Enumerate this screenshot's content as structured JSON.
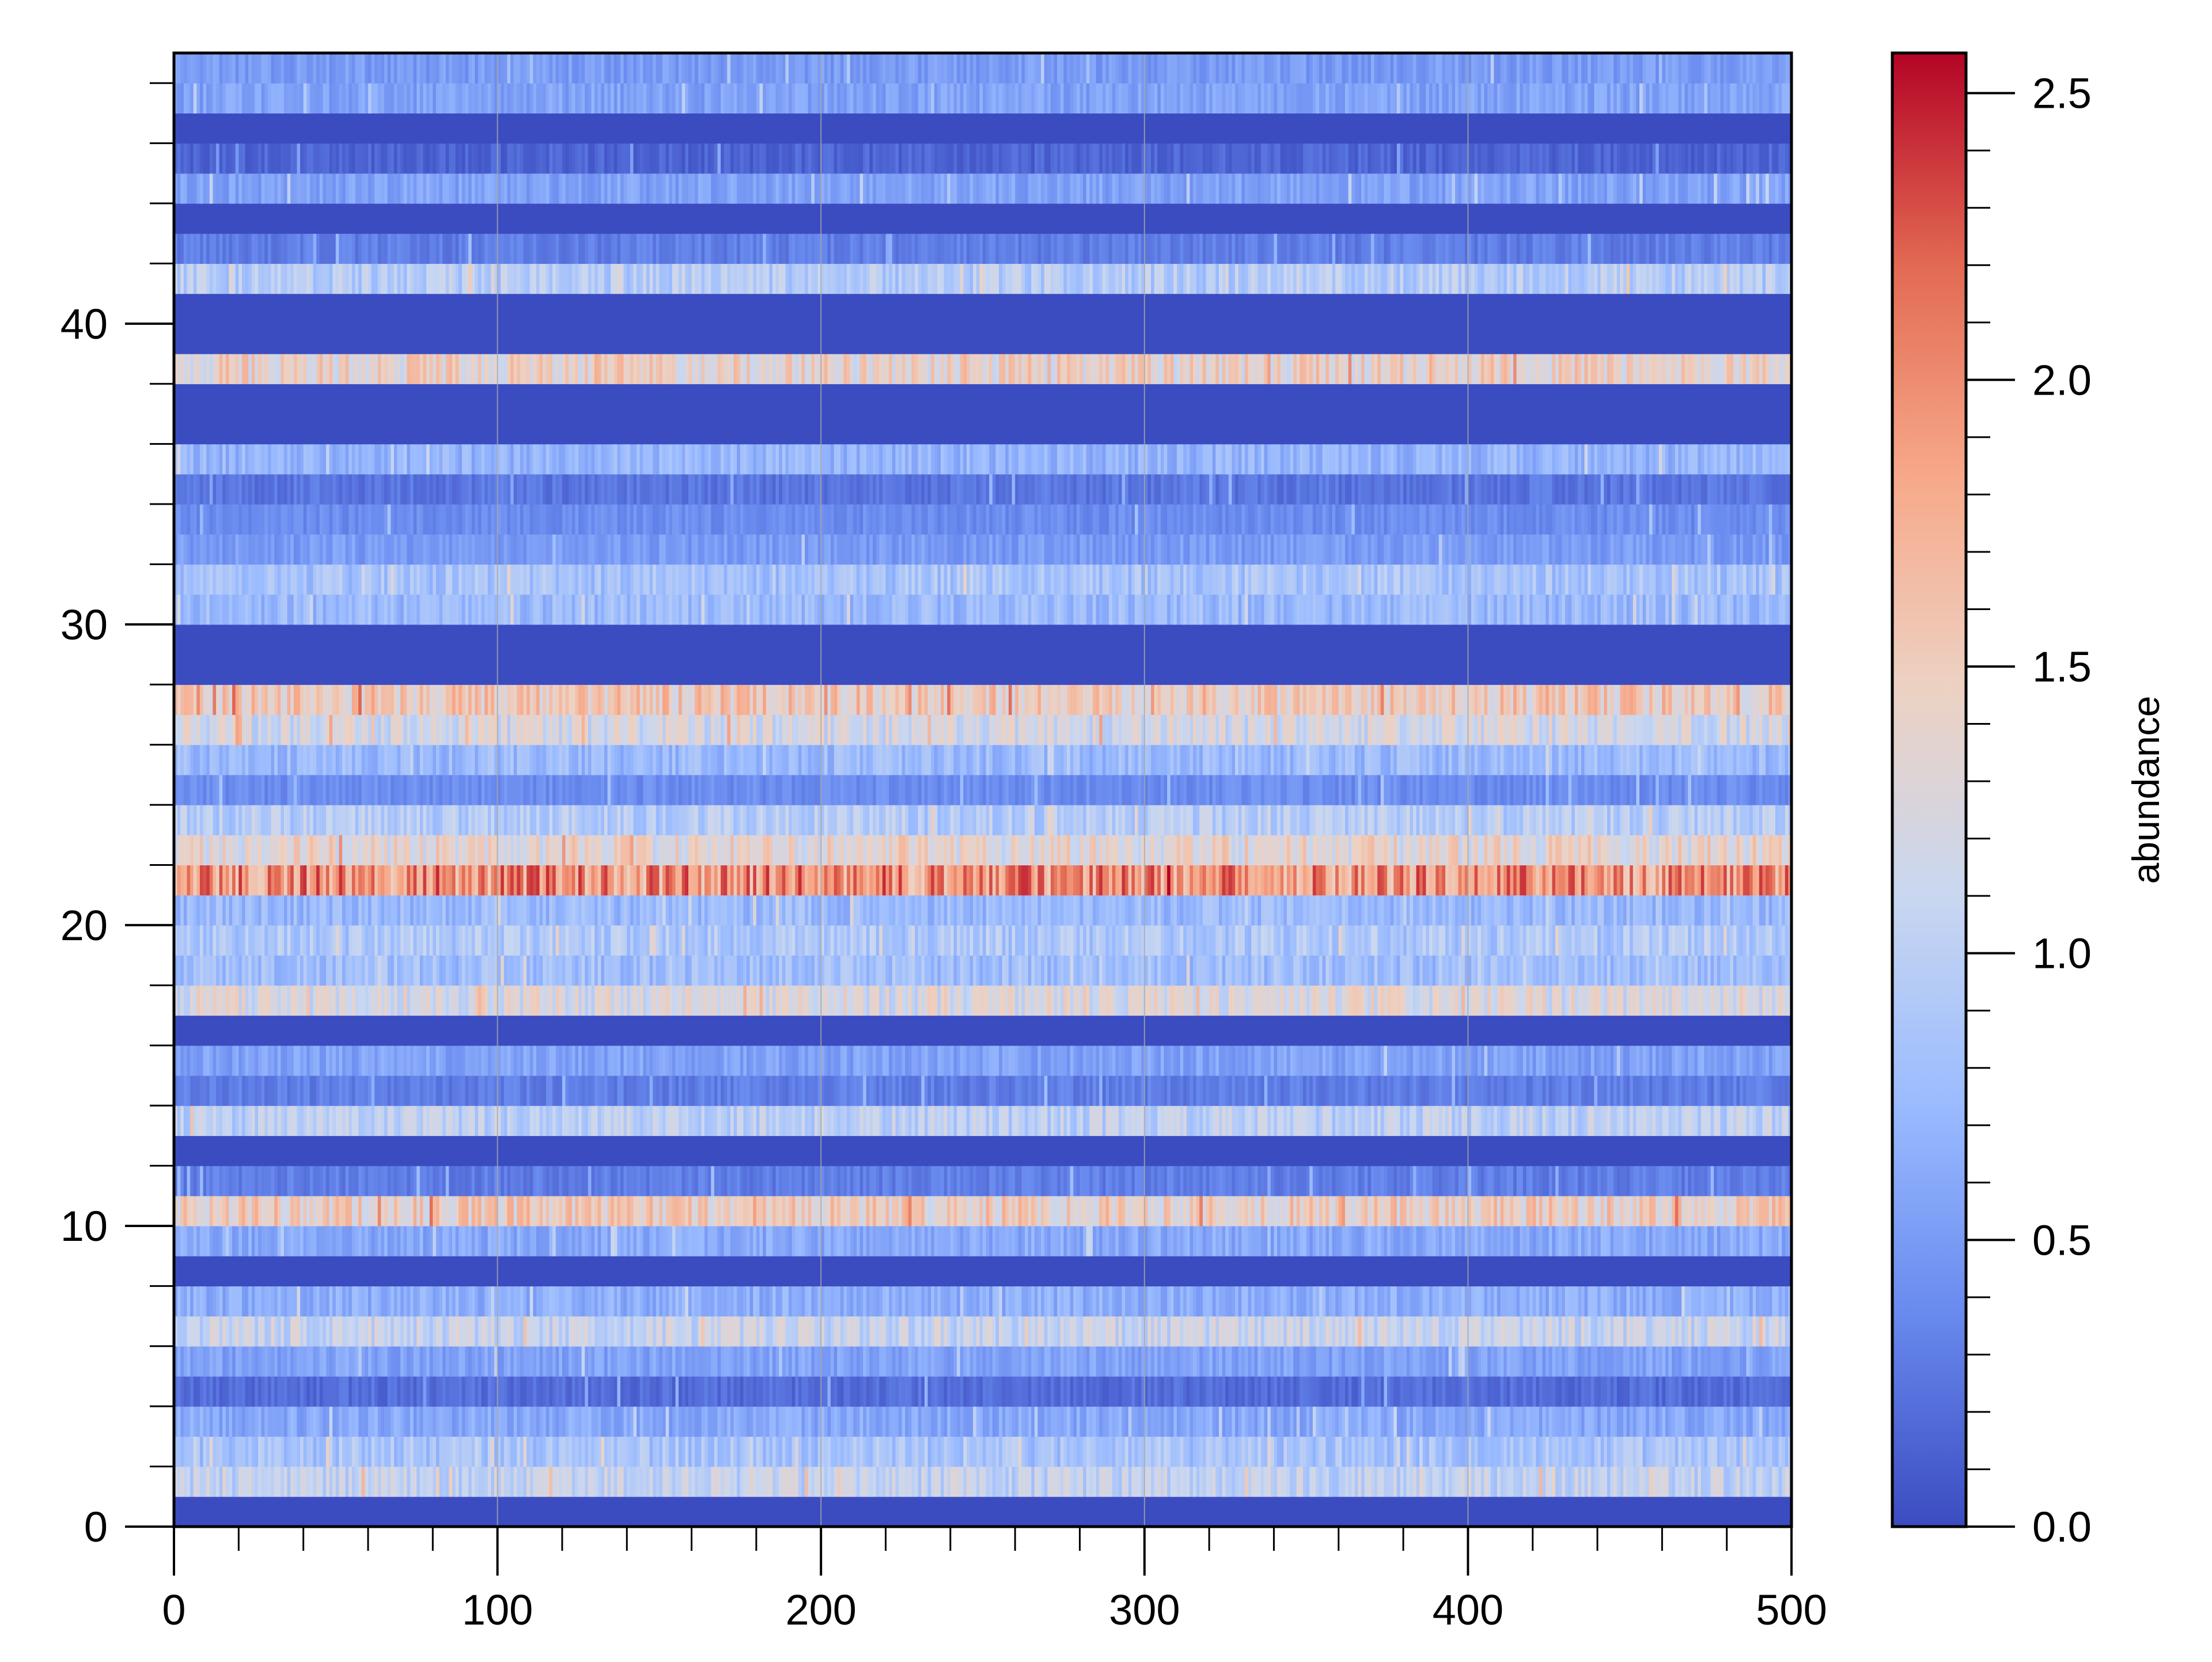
{
  "chart_data": {
    "type": "heatmap",
    "title": "",
    "xlabel": "",
    "ylabel": "",
    "xlim": [
      0,
      500
    ],
    "ylim": [
      0,
      49
    ],
    "x_ticks": [
      0,
      100,
      200,
      300,
      400,
      500
    ],
    "x_minor_step": 20,
    "y_ticks": [
      0,
      10,
      20,
      30,
      40
    ],
    "y_minor_step": 2,
    "grid": "vertical lines at major x ticks",
    "colormap": "coolwarm",
    "colorbar": {
      "label": "abundance",
      "range": [
        0.0,
        2.57
      ],
      "ticks": [
        "0.0",
        "0.5",
        "1.0",
        "1.5",
        "2.0",
        "2.5"
      ],
      "minor_step": 0.1,
      "placement": "right"
    },
    "n_columns": 500,
    "n_rows": 49,
    "row_mean_abundance": [
      0.0,
      1.05,
      0.85,
      0.6,
      0.2,
      0.55,
      1.1,
      0.65,
      0.0,
      0.6,
      1.45,
      0.3,
      0.0,
      1.0,
      0.3,
      0.55,
      0.0,
      1.25,
      0.8,
      0.9,
      0.75,
      1.95,
      1.35,
      0.95,
      0.4,
      0.75,
      1.2,
      1.5,
      0.0,
      0.0,
      0.75,
      0.85,
      0.5,
      0.4,
      0.25,
      0.7,
      0.0,
      0.0,
      1.4,
      0.0,
      0.0,
      0.95,
      0.3,
      0.0,
      0.55,
      0.15,
      0.0,
      0.55,
      0.5
    ],
    "row_variation": 0.25
  },
  "colors": {
    "background": "#ffffff",
    "axis": "#000000",
    "grid": "#a8a8a8",
    "cmap_stops": [
      "#3b4cc0",
      "#6889ee",
      "#9abbff",
      "#c9d7f0",
      "#edd1c2",
      "#f7a889",
      "#e26952",
      "#b40426"
    ]
  }
}
